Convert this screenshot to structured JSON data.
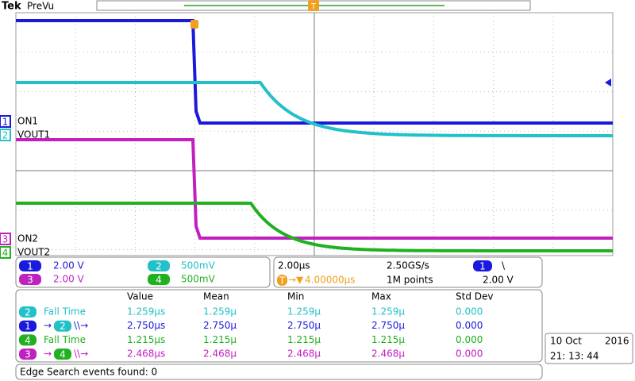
{
  "header": {
    "brand": "Tek",
    "mode": "PreVu",
    "trigger_icon": "T"
  },
  "channels": [
    {
      "number": "1",
      "label": "ON1",
      "scale": "2.00 V"
    },
    {
      "number": "2",
      "label": "VOUT1",
      "scale": "500mV"
    },
    {
      "number": "3",
      "label": "ON2",
      "scale": "2.00 V"
    },
    {
      "number": "4",
      "label": "VOUT2",
      "scale": "500mV"
    }
  ],
  "timebase": {
    "scale": "2.00µs",
    "sample_rate": "2.50GS/s",
    "trigger_source": "1",
    "trigger_slope": "\\",
    "trigger_icon": "T",
    "trigger_arrow": "→▼",
    "trigger_position": "4.00000µs",
    "record_length": "1M points",
    "trigger_level": "2.00 V"
  },
  "measurements": {
    "columns": [
      "Value",
      "Mean",
      "Min",
      "Max",
      "Std Dev"
    ],
    "rows": [
      {
        "source": "2",
        "name": "Fall Time",
        "values": [
          "1.259µs",
          "1.259µ",
          "1.259µ",
          "1.259µ",
          "0.000"
        ]
      },
      {
        "source": "1",
        "arrow": "→",
        "target": "2",
        "edges": "\\\\→",
        "values": [
          "2.750µs",
          "2.750µ",
          "2.750µ",
          "2.750µ",
          "0.000"
        ]
      },
      {
        "source": "4",
        "name": "Fall Time",
        "values": [
          "1.215µs",
          "1.215µ",
          "1.215µ",
          "1.215µ",
          "0.000"
        ]
      },
      {
        "source": "3",
        "arrow": "→",
        "target": "4",
        "edges": "\\\\→",
        "values": [
          "2.468µs",
          "2.468µ",
          "2.468µ",
          "2.468µ",
          "0.000"
        ]
      }
    ]
  },
  "status": "Edge Search events found: 0",
  "clock": {
    "date": "10 Oct",
    "year": "2016",
    "time": "21: 13: 44"
  }
}
